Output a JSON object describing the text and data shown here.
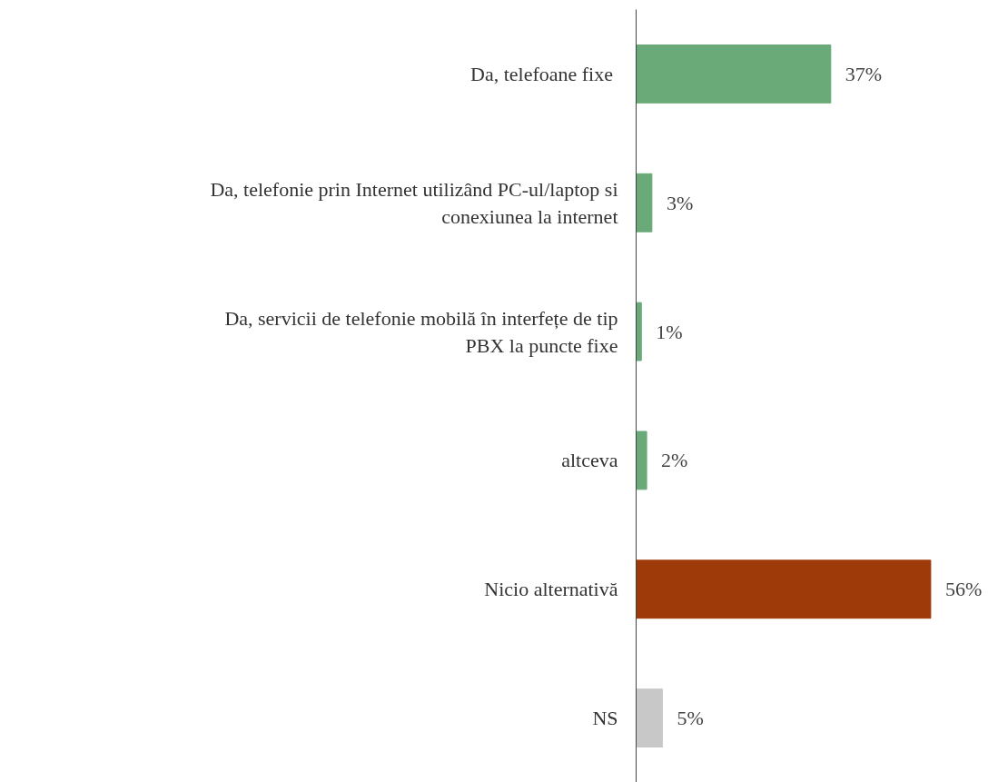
{
  "chart_data": {
    "type": "bar",
    "orientation": "horizontal",
    "categories": [
      "Da, telefoane  fixe",
      "Da, telefonie prin Internet utilizând PC-ul/laptop si conexiunea la internet",
      "Da, servicii de telefonie mobilă în interfețe de tip PBX la puncte fixe",
      "altceva",
      "Nicio alternativă",
      "NS"
    ],
    "values": [
      37,
      3,
      1,
      2,
      56,
      5
    ],
    "value_labels": [
      "37%",
      "3%",
      "1%",
      "2%",
      "56%",
      "5%"
    ],
    "colors": [
      "#6aaa78",
      "#6aaa78",
      "#6aaa78",
      "#6aaa78",
      "#9e3a0a",
      "#c8c8c8"
    ],
    "grid": false
  }
}
